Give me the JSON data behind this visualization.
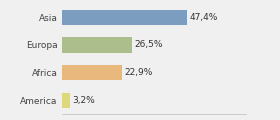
{
  "categories": [
    "Asia",
    "Europa",
    "Africa",
    "America"
  ],
  "values": [
    47.4,
    26.5,
    22.9,
    3.2
  ],
  "labels": [
    "47,4%",
    "26,5%",
    "22,9%",
    "3,2%"
  ],
  "bar_colors": [
    "#7b9ec0",
    "#abbe8c",
    "#e8b87c",
    "#ddd87a"
  ],
  "background_color": "#f0f0f0",
  "xlim": [
    0,
    70
  ],
  "label_fontsize": 6.5,
  "tick_fontsize": 6.5,
  "bar_height": 0.55
}
